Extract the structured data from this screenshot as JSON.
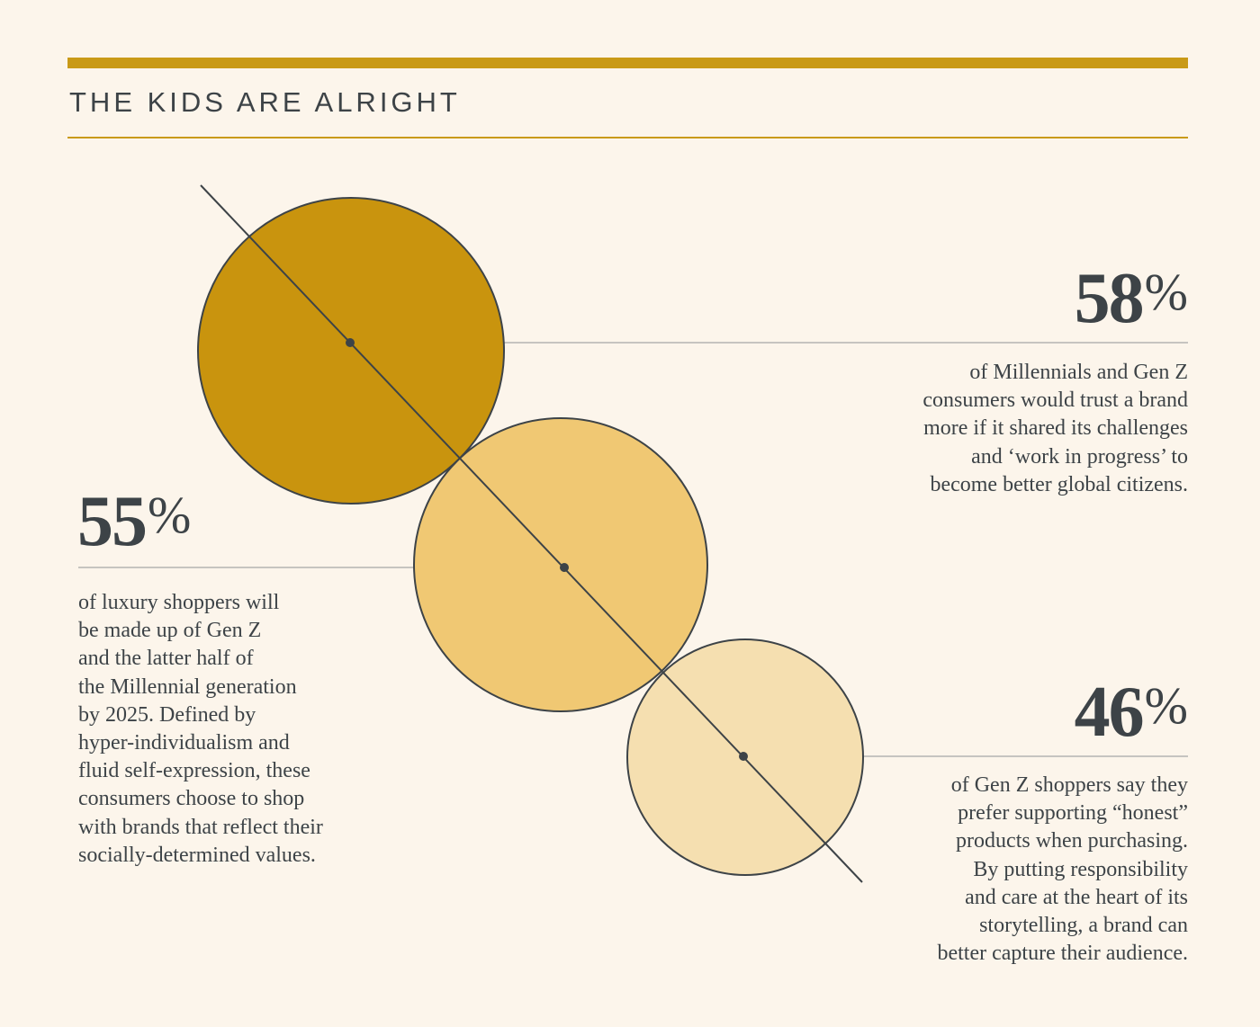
{
  "header": {
    "title": "THE KIDS ARE ALRIGHT"
  },
  "colors": {
    "accent": "#c99a17",
    "circle_dark": "#c9940e",
    "circle_mid": "#f0c873",
    "circle_light": "#f5dfb0",
    "ink": "#3d4347",
    "background": "#fcf5eb"
  },
  "chart_data": {
    "type": "bubble",
    "title": "THE KIDS ARE ALRIGHT",
    "series": [
      {
        "value": 58,
        "label": "58%",
        "percent_sign": "%",
        "number": "58",
        "color": "#c9940e",
        "description_lines": [
          "of Millennials and Gen Z",
          "consumers would trust a brand",
          "more if it shared its challenges",
          "and ‘work in progress’ to",
          "become better global citizens."
        ]
      },
      {
        "value": 55,
        "label": "55%",
        "percent_sign": "%",
        "number": "55",
        "color": "#f0c873",
        "description_lines": [
          "of luxury shoppers will",
          "be made up of Gen Z",
          "and the latter half of",
          "the Millennial generation",
          "by 2025. Defined by",
          "hyper-individualism and",
          "fluid self-expression, these",
          "consumers choose to shop",
          "with brands that reflect their",
          "socially-determined values."
        ]
      },
      {
        "value": 46,
        "label": "46%",
        "percent_sign": "%",
        "number": "46",
        "color": "#f5dfb0",
        "description_lines": [
          "of Gen Z shoppers say they",
          "prefer supporting “honest”",
          "products when purchasing.",
          "By putting responsibility",
          "and care at the heart of its",
          "storytelling, a brand can",
          "better capture their audience."
        ]
      }
    ]
  }
}
